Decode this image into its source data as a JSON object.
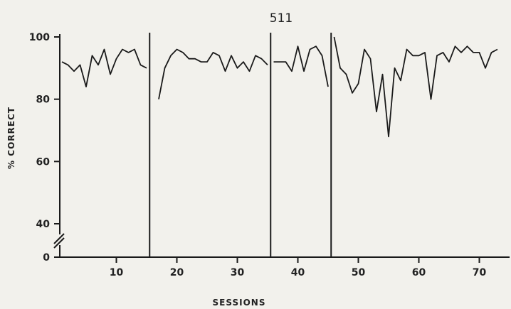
{
  "chart_data": {
    "type": "line",
    "title": "511",
    "xlabel": "SESSIONS",
    "ylabel": "% CORRECT",
    "xlim": [
      0,
      73
    ],
    "ylim": [
      0,
      100
    ],
    "x_ticks": [
      10,
      20,
      30,
      40,
      50,
      60,
      70
    ],
    "y_ticks": [
      0,
      40,
      60,
      80,
      100
    ],
    "y_axis_break": true,
    "grid": false,
    "phase_lines": [
      15.5,
      35.5,
      45.5
    ],
    "series": [
      {
        "segments": [
          {
            "x": [
              1,
              2,
              3,
              4,
              5,
              6,
              7,
              8,
              9,
              10,
              11,
              12,
              13,
              14,
              15
            ],
            "y": [
              92,
              91,
              89,
              91,
              84,
              94,
              91,
              96,
              88,
              93,
              96,
              95,
              96,
              91,
              90
            ]
          },
          {
            "x": [
              17,
              18,
              19,
              20,
              21,
              22,
              23,
              24,
              25,
              26,
              27,
              28,
              29,
              30,
              31,
              32,
              33,
              34,
              35
            ],
            "y": [
              80,
              90,
              94,
              96,
              95,
              93,
              93,
              92,
              92,
              95,
              94,
              89,
              94,
              90,
              92,
              89,
              94,
              93,
              91
            ]
          },
          {
            "x": [
              36,
              37,
              38,
              39,
              40,
              41,
              42,
              43,
              44,
              45
            ],
            "y": [
              92,
              92,
              92,
              89,
              97,
              89,
              96,
              97,
              94,
              84
            ],
            "note": "first value starts at phase line"
          },
          {
            "x": [
              46,
              47,
              48,
              49,
              50,
              51,
              52,
              53,
              54,
              55,
              56,
              57,
              58,
              59,
              60,
              61,
              62,
              63,
              64,
              65,
              66,
              67,
              68,
              69,
              70,
              71,
              72,
              73
            ],
            "y": [
              100,
              90,
              88,
              82,
              85,
              96,
              93,
              76,
              88,
              68,
              90,
              86,
              96,
              94,
              94,
              95,
              80,
              94,
              95,
              92,
              97,
              95,
              97,
              95,
              95,
              90,
              95,
              96
            ]
          }
        ]
      }
    ]
  }
}
